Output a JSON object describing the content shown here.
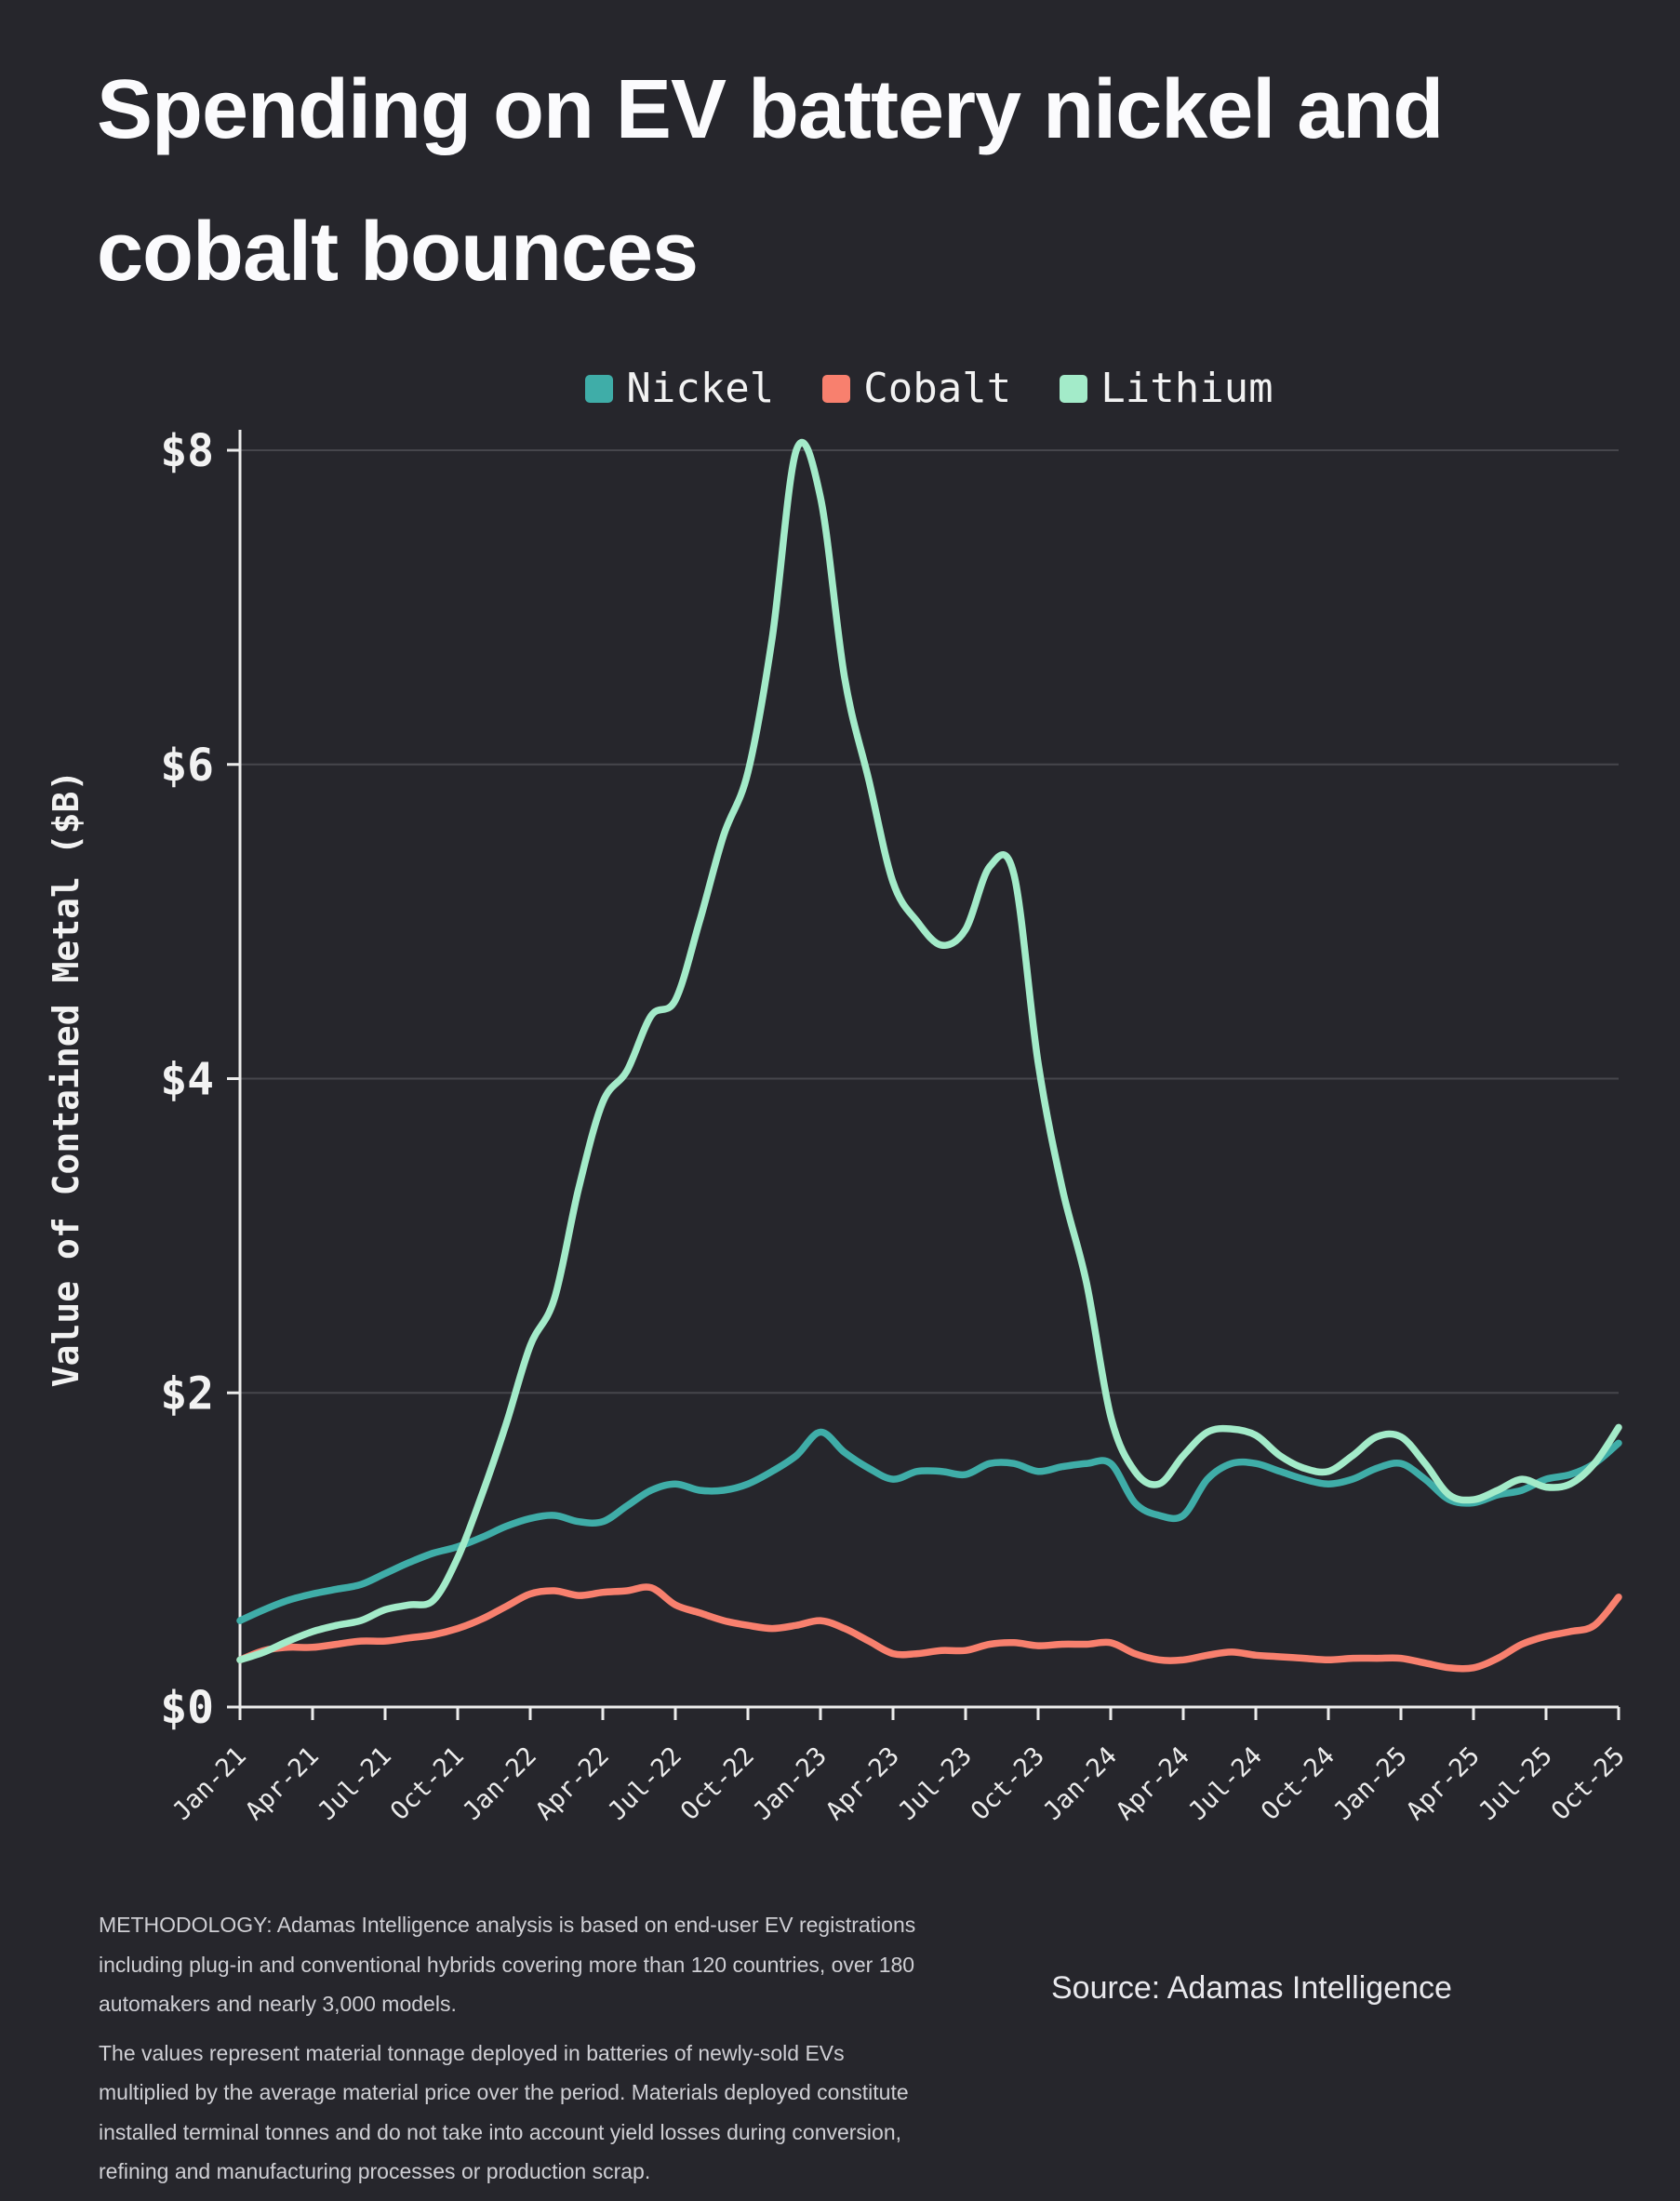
{
  "title": "Spending on EV battery nickel and cobalt bounces",
  "colors": {
    "background": "#26262c",
    "text": "#f2f2f2",
    "gridline": "#46464c",
    "axis": "#ececec"
  },
  "chart_data": {
    "type": "line",
    "title": "Spending on EV battery nickel and cobalt bounces",
    "xlabel": "",
    "ylabel": "Value of Contained Metal ($B)",
    "ylim": [
      0,
      8
    ],
    "yticks": [
      "$0",
      "$2",
      "$4",
      "$6",
      "$8"
    ],
    "ytick_values": [
      0,
      2,
      4,
      6,
      8
    ],
    "grid": true,
    "legend_position": "top",
    "n_points": 58,
    "x_tick_labels": [
      "Jan-21",
      "Apr-21",
      "Jul-21",
      "Oct-21",
      "Jan-22",
      "Apr-22",
      "Jul-22",
      "Oct-22",
      "Jan-23",
      "Apr-23",
      "Jul-23",
      "Oct-23",
      "Jan-24",
      "Apr-24",
      "Jul-24",
      "Oct-24",
      "Jan-25",
      "Apr-25",
      "Jul-25",
      "Oct-25"
    ],
    "x_tick_indices": [
      0,
      3,
      6,
      9,
      12,
      15,
      18,
      21,
      24,
      27,
      30,
      33,
      36,
      39,
      42,
      45,
      48,
      51,
      54,
      57
    ],
    "series": [
      {
        "name": "Nickel",
        "color": "#3fada8",
        "values": [
          0.55,
          0.62,
          0.68,
          0.72,
          0.75,
          0.78,
          0.85,
          0.92,
          0.98,
          1.02,
          1.08,
          1.15,
          1.2,
          1.22,
          1.18,
          1.18,
          1.28,
          1.38,
          1.42,
          1.38,
          1.38,
          1.42,
          1.5,
          1.6,
          1.75,
          1.62,
          1.52,
          1.45,
          1.5,
          1.5,
          1.48,
          1.55,
          1.55,
          1.5,
          1.53,
          1.55,
          1.55,
          1.3,
          1.22,
          1.22,
          1.45,
          1.55,
          1.55,
          1.5,
          1.45,
          1.42,
          1.45,
          1.52,
          1.55,
          1.45,
          1.32,
          1.3,
          1.35,
          1.38,
          1.45,
          1.48,
          1.55,
          1.68
        ]
      },
      {
        "name": "Cobalt",
        "color": "#f8806e",
        "values": [
          0.3,
          0.36,
          0.38,
          0.38,
          0.4,
          0.42,
          0.42,
          0.44,
          0.46,
          0.5,
          0.56,
          0.64,
          0.72,
          0.74,
          0.71,
          0.73,
          0.74,
          0.76,
          0.65,
          0.6,
          0.55,
          0.52,
          0.5,
          0.52,
          0.55,
          0.5,
          0.42,
          0.34,
          0.34,
          0.36,
          0.36,
          0.4,
          0.41,
          0.39,
          0.4,
          0.4,
          0.41,
          0.34,
          0.3,
          0.3,
          0.33,
          0.35,
          0.33,
          0.32,
          0.31,
          0.3,
          0.31,
          0.31,
          0.31,
          0.28,
          0.25,
          0.25,
          0.31,
          0.4,
          0.45,
          0.48,
          0.52,
          0.7
        ]
      },
      {
        "name": "Lithium",
        "color": "#a3ebc9",
        "values": [
          0.3,
          0.35,
          0.42,
          0.48,
          0.52,
          0.55,
          0.62,
          0.65,
          0.68,
          0.95,
          1.35,
          1.8,
          2.3,
          2.6,
          3.3,
          3.85,
          4.05,
          4.4,
          4.5,
          5.0,
          5.55,
          5.95,
          6.8,
          8.0,
          7.7,
          6.55,
          5.9,
          5.25,
          5.0,
          4.85,
          4.95,
          5.35,
          5.3,
          4.1,
          3.3,
          2.7,
          1.85,
          1.5,
          1.42,
          1.6,
          1.75,
          1.77,
          1.73,
          1.6,
          1.52,
          1.5,
          1.6,
          1.72,
          1.72,
          1.55,
          1.35,
          1.32,
          1.38,
          1.45,
          1.4,
          1.42,
          1.55,
          1.78
        ]
      }
    ]
  },
  "footer": {
    "methodology_p1": "METHODOLOGY: Adamas Intelligence analysis is based on end-user EV registrations including plug-in and conventional hybrids covering more than 120 countries, over 180 automakers and nearly 3,000 models.",
    "methodology_p2": "The values represent material tonnage deployed in batteries of newly-sold EVs multiplied by the average material price over the period.  Materials deployed constitute installed terminal tonnes and do not take into account yield losses during conversion, refining and manufacturing processes or production scrap.",
    "source": "Source: Adamas Intelligence"
  }
}
